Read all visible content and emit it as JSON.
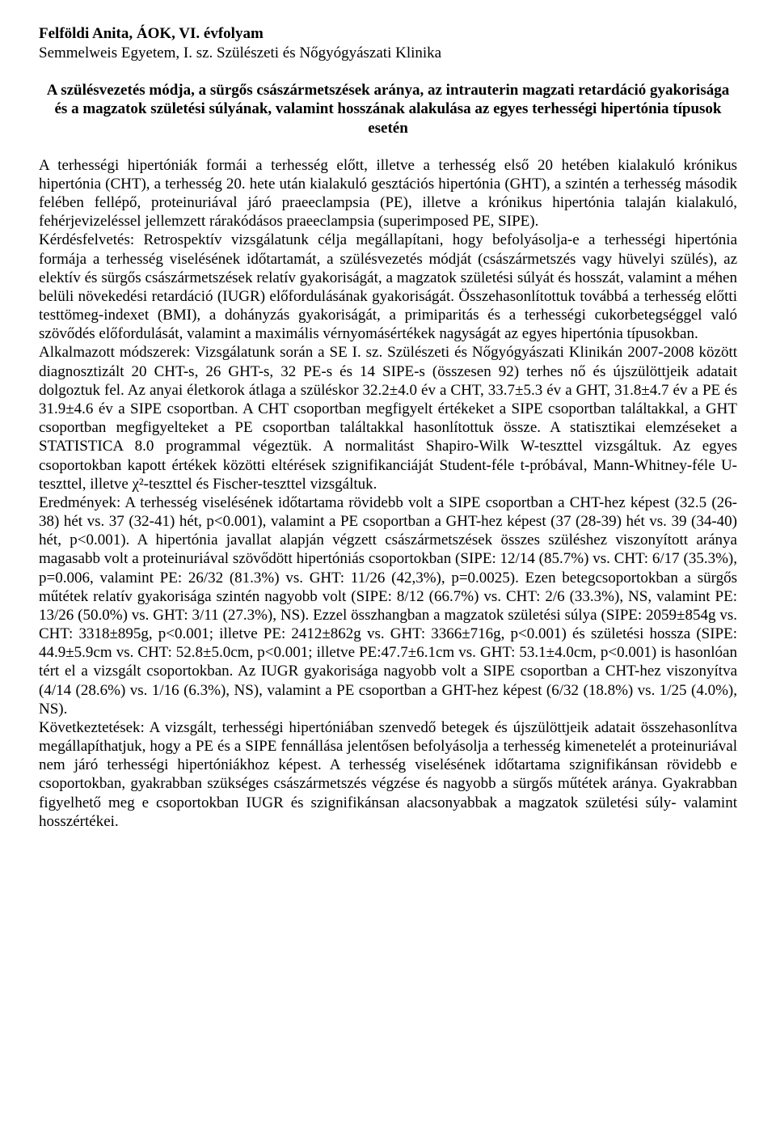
{
  "document": {
    "background_color": "#ffffff",
    "text_color": "#000000",
    "font_family": "Times New Roman",
    "font_size_pt": 14.5,
    "author": "Felföldi Anita, ÁOK, VI. évfolyam",
    "institution": "Semmelweis Egyetem, I. sz. Szülészeti és Nőgyógyászati Klinika",
    "title": "A szülésvezetés módja, a sürgős császármetszések aránya, az intrauterin magzati retardáció gyakorisága és a magzatok születési súlyának, valamint hosszának alakulása az egyes terhességi hipertónia típusok esetén",
    "body": "A terhességi hipertóniák formái a terhesség előtt, illetve a terhesség első 20 hetében kialakuló krónikus hipertónia (CHT), a terhesség 20. hete után kialakuló gesztációs hipertónia (GHT), a szintén a terhesség második felében fellépő, proteinuriával járó praeeclampsia (PE), illetve a krónikus hipertónia talaján kialakuló, fehérjevizeléssel jellemzett rárakódásos praeeclampsia (superimposed PE, SIPE).\nKérdésfelvetés: Retrospektív vizsgálatunk célja megállapítani, hogy befolyásolja-e a terhességi hipertónia formája a terhesség viselésének időtartamát, a szülésvezetés módját (császármetszés vagy hüvelyi szülés), az elektív és sürgős császármetszések relatív gyakoriságát, a magzatok születési súlyát és hosszát, valamint a méhen belüli növekedési retardáció (IUGR) előfordulásának gyakoriságát. Összehasonlítottuk továbbá a terhesség előtti testtömeg-indexet (BMI), a dohányzás gyakoriságát, a primiparitás és a terhességi cukorbetegséggel való szövődés előfordulását, valamint a maximális vérnyomásértékek nagyságát az egyes hipertónia típusokban.\nAlkalmazott módszerek: Vizsgálatunk során a SE I. sz. Szülészeti és Nőgyógyászati Klinikán 2007-2008 között diagnosztizált 20 CHT-s, 26 GHT-s, 32 PE-s és 14 SIPE-s (összesen 92) terhes nő és újszülöttjeik adatait dolgoztuk fel. Az anyai életkorok átlaga a szüléskor 32.2±4.0 év a CHT, 33.7±5.3 év a GHT, 31.8±4.7 év a PE és 31.9±4.6 év a SIPE csoportban. A CHT csoportban megfigyelt értékeket a SIPE csoportban találtakkal, a GHT csoportban megfigyelteket a PE csoportban találtakkal hasonlítottuk össze. A statisztikai elemzéseket a STATISTICA 8.0 programmal végeztük. A normalitást Shapiro-Wilk W-teszttel vizsgáltuk. Az egyes csoportokban kapott értékek közötti eltérések szignifikanciáját Student-féle t-próbával, Mann-Whitney-féle U-teszttel, illetve χ²-teszttel és Fischer-teszttel vizsgáltuk.\nEredmények: A terhesség viselésének időtartama rövidebb volt a SIPE csoportban a CHT-hez képest (32.5 (26-38) hét vs. 37 (32-41) hét, p<0.001), valamint a PE csoportban a GHT-hez képest (37 (28-39) hét vs. 39 (34-40) hét, p<0.001). A hipertónia javallat alapján végzett császármetszések összes szüléshez viszonyított aránya magasabb volt a proteinuriával szövődött hipertóniás csoportokban (SIPE: 12/14 (85.7%) vs. CHT: 6/17 (35.3%), p=0.006, valamint PE: 26/32 (81.3%) vs. GHT: 11/26 (42,3%), p=0.0025). Ezen betegcsoportokban a sürgős műtétek relatív gyakorisága szintén nagyobb volt (SIPE: 8/12 (66.7%) vs. CHT: 2/6 (33.3%), NS, valamint PE: 13/26 (50.0%) vs. GHT: 3/11 (27.3%), NS). Ezzel összhangban a magzatok születési súlya (SIPE: 2059±854g vs. CHT: 3318±895g, p<0.001; illetve PE: 2412±862g vs. GHT: 3366±716g, p<0.001) és születési hossza (SIPE: 44.9±5.9cm vs. CHT: 52.8±5.0cm, p<0.001; illetve PE:47.7±6.1cm vs. GHT: 53.1±4.0cm, p<0.001) is hasonlóan tért el a vizsgált csoportokban. Az IUGR gyakorisága nagyobb volt a SIPE csoportban a CHT-hez viszonyítva (4/14 (28.6%) vs. 1/16 (6.3%), NS), valamint a PE csoportban a GHT-hez képest (6/32 (18.8%) vs. 1/25 (4.0%), NS).\nKövetkeztetések: A vizsgált, terhességi hipertóniában szenvedő betegek és újszülöttjeik adatait összehasonlítva megállapíthatjuk, hogy a PE és a SIPE fennállása jelentősen befolyásolja a terhesség kimenetelét a proteinuriával nem járó terhességi hipertóniákhoz képest. A terhesség viselésének időtartama szignifikánsan rövidebb e csoportokban, gyakrabban szükséges császármetszés végzése és nagyobb a sürgős műtétek aránya. Gyakrabban figyelhető meg e csoportokban IUGR és szignifikánsan alacsonyabbak a magzatok születési súly- valamint hosszértékei."
  }
}
